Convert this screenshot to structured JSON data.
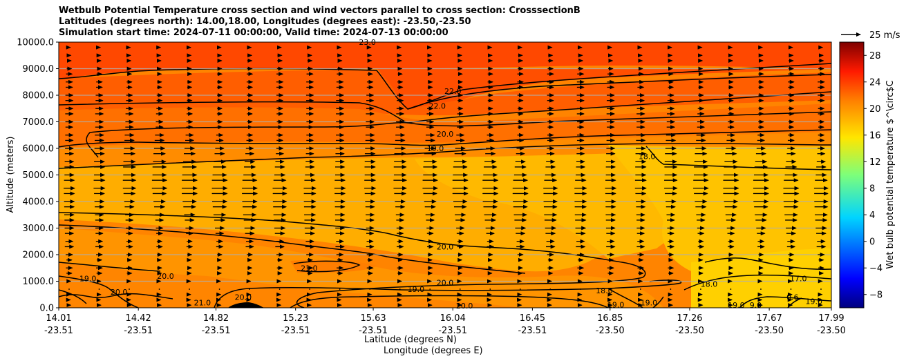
{
  "titles": {
    "line1": "Wetbulb Potential Temperature cross section and wind vectors parallel to cross section: CrosssectionB",
    "line2": "Latitudes (degrees north): 14.00,18.00, Longitudes (degrees east): -23.50,-23.50",
    "line3": "Simulation start time: 2024-07-11 00:00:00, Valid time: 2024-07-13 00:00:00"
  },
  "axes": {
    "ylabel": "Altitude (meters)",
    "xlabel_lat": "Latitude (degrees N)",
    "xlabel_lon": "Longitude (degrees E)",
    "colorbar_label": "Wet bulb potential temperature $^\\circ$C"
  },
  "quiver_key": {
    "label": "25 m/s"
  },
  "chart_data": {
    "type": "heatmap",
    "subtype": "filled contour cross section with contour lines and wind vectors",
    "ylim": [
      0,
      10000
    ],
    "yticks": [
      0,
      1000,
      2000,
      3000,
      4000,
      5000,
      6000,
      7000,
      8000,
      9000,
      10000
    ],
    "ytick_labels": [
      "0.0",
      "1000.0",
      "2000.0",
      "3000.0",
      "4000.0",
      "5000.0",
      "6000.0",
      "7000.0",
      "8000.0",
      "9000.0",
      "10000.0"
    ],
    "xticks": [
      {
        "lat": "14.01",
        "lon": "-23.51"
      },
      {
        "lat": "14.42",
        "lon": "-23.51"
      },
      {
        "lat": "14.82",
        "lon": "-23.51"
      },
      {
        "lat": "15.23",
        "lon": "-23.51"
      },
      {
        "lat": "15.63",
        "lon": "-23.51"
      },
      {
        "lat": "16.04",
        "lon": "-23.51"
      },
      {
        "lat": "16.45",
        "lon": "-23.51"
      },
      {
        "lat": "16.85",
        "lon": "-23.50"
      },
      {
        "lat": "17.26",
        "lon": "-23.50"
      },
      {
        "lat": "17.67",
        "lon": "-23.50"
      },
      {
        "lat": "17.99",
        "lon": "-23.50"
      }
    ],
    "grid": "horizontal",
    "colorbar": {
      "range": [
        -10,
        30
      ],
      "ticks": [
        -8,
        -4,
        0,
        4,
        8,
        12,
        16,
        20,
        24,
        28
      ],
      "colormap": "jet"
    },
    "contour_labels": [
      {
        "text": "23.0",
        "lat": 15.6,
        "alt": 10000
      },
      {
        "text": "22.0",
        "lat": 16.04,
        "alt": 8150
      },
      {
        "text": "22.0",
        "lat": 15.96,
        "alt": 7600
      },
      {
        "text": "20.0",
        "lat": 16.0,
        "alt": 6550
      },
      {
        "text": "19.0",
        "lat": 15.95,
        "alt": 6000
      },
      {
        "text": "18.0",
        "lat": 17.04,
        "alt": 5700
      },
      {
        "text": "20.0",
        "lat": 16.0,
        "alt": 2300
      },
      {
        "text": "21.0",
        "lat": 15.3,
        "alt": 1500
      },
      {
        "text": "20.0",
        "lat": 16.0,
        "alt": 950
      },
      {
        "text": "19.0",
        "lat": 15.85,
        "alt": 700
      },
      {
        "text": "20.0",
        "lat": 16.1,
        "alt": 80
      },
      {
        "text": "19.0",
        "lat": 14.16,
        "alt": 1100
      },
      {
        "text": "20.0",
        "lat": 14.32,
        "alt": 600
      },
      {
        "text": "20.0",
        "lat": 14.56,
        "alt": 1200
      },
      {
        "text": "21.0",
        "lat": 14.75,
        "alt": 200
      },
      {
        "text": "20.0",
        "lat": 14.96,
        "alt": 400
      },
      {
        "text": "18.0",
        "lat": 16.82,
        "alt": 650
      },
      {
        "text": "19.0",
        "lat": 16.88,
        "alt": 120
      },
      {
        "text": "19.0",
        "lat": 17.05,
        "alt": 200
      },
      {
        "text": "18.0",
        "lat": 17.36,
        "alt": 900
      },
      {
        "text": "19.0",
        "lat": 17.5,
        "alt": 100
      },
      {
        "text": "9.0",
        "lat": 17.6,
        "alt": 100
      },
      {
        "text": "17.0",
        "lat": 17.82,
        "alt": 1100
      },
      {
        "text": "0.6",
        "lat": 17.79,
        "alt": 400
      },
      {
        "text": "19.0",
        "lat": 17.9,
        "alt": 250
      }
    ]
  }
}
